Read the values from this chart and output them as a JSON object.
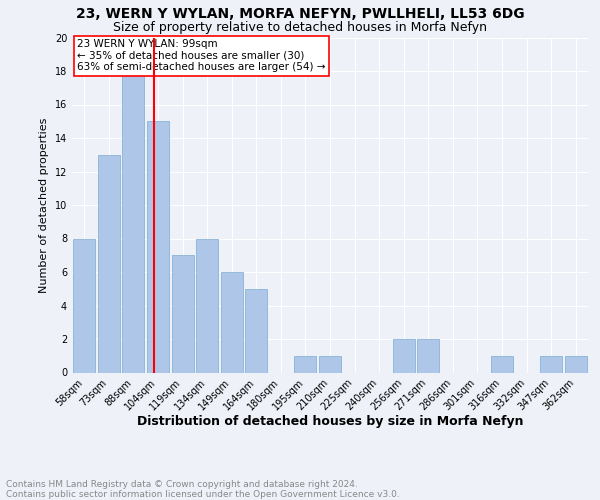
{
  "title": "23, WERN Y WYLAN, MORFA NEFYN, PWLLHELI, LL53 6DG",
  "subtitle": "Size of property relative to detached houses in Morfa Nefyn",
  "xlabel": "Distribution of detached houses by size in Morfa Nefyn",
  "ylabel": "Number of detached properties",
  "categories": [
    "58sqm",
    "73sqm",
    "88sqm",
    "104sqm",
    "119sqm",
    "134sqm",
    "149sqm",
    "164sqm",
    "180sqm",
    "195sqm",
    "210sqm",
    "225sqm",
    "240sqm",
    "256sqm",
    "271sqm",
    "286sqm",
    "301sqm",
    "316sqm",
    "332sqm",
    "347sqm",
    "362sqm"
  ],
  "values": [
    8,
    13,
    18,
    15,
    7,
    8,
    6,
    5,
    0,
    1,
    1,
    0,
    0,
    2,
    2,
    0,
    0,
    1,
    0,
    1,
    1
  ],
  "bar_color": "#aec6e8",
  "bar_edge_color": "#8ab4d8",
  "property_line_x": 2.85,
  "property_line_color": "red",
  "annotation_text": "23 WERN Y WYLAN: 99sqm\n← 35% of detached houses are smaller (30)\n63% of semi-detached houses are larger (54) →",
  "annotation_box_color": "white",
  "annotation_box_edge_color": "red",
  "ylim": [
    0,
    20
  ],
  "yticks": [
    0,
    2,
    4,
    6,
    8,
    10,
    12,
    14,
    16,
    18,
    20
  ],
  "footer_text": "Contains HM Land Registry data © Crown copyright and database right 2024.\nContains public sector information licensed under the Open Government Licence v3.0.",
  "title_fontsize": 10,
  "subtitle_fontsize": 9,
  "xlabel_fontsize": 9,
  "ylabel_fontsize": 8,
  "tick_fontsize": 7,
  "annotation_fontsize": 7.5,
  "footer_fontsize": 6.5,
  "background_color": "#eef2f8",
  "grid_color": "#ffffff"
}
